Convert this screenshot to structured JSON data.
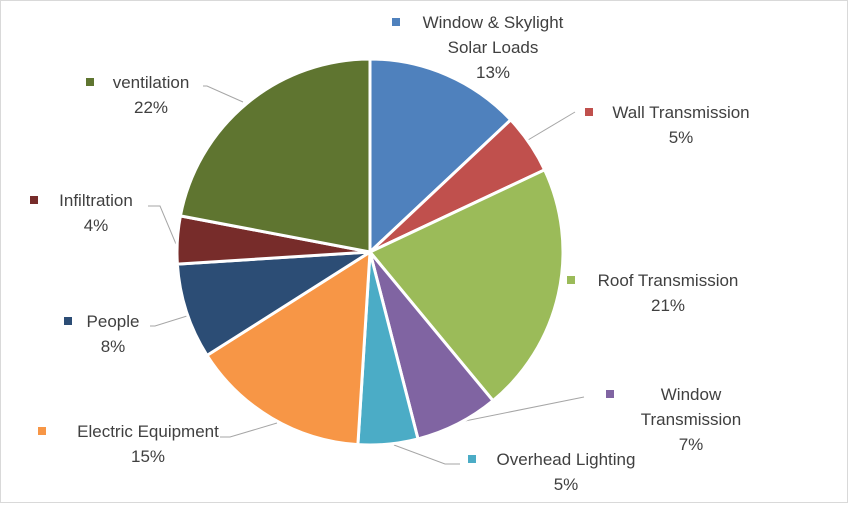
{
  "chart_data": {
    "type": "pie",
    "start_angle_deg": 0,
    "direction": "clockwise",
    "slices": [
      {
        "lines": [
          "Window & Skylight",
          "Solar Loads"
        ],
        "value": 13,
        "value_label": "13%",
        "color": "#4f81bd"
      },
      {
        "lines": [
          "Wall Transmission"
        ],
        "value": 5,
        "value_label": "5%",
        "color": "#c0504d"
      },
      {
        "lines": [
          "Roof Transmission"
        ],
        "value": 21,
        "value_label": "21%",
        "color": "#9bbb59"
      },
      {
        "lines": [
          "Window",
          "Transmission"
        ],
        "value": 7,
        "value_label": "7%",
        "color": "#8064a2"
      },
      {
        "lines": [
          "Overhead Lighting"
        ],
        "value": 5,
        "value_label": "5%",
        "color": "#4bacc6"
      },
      {
        "lines": [
          "Electric Equipment"
        ],
        "value": 15,
        "value_label": "15%",
        "color": "#f79646"
      },
      {
        "lines": [
          "People"
        ],
        "value": 8,
        "value_label": "8%",
        "color": "#2c4d75"
      },
      {
        "lines": [
          "Infiltration"
        ],
        "value": 4,
        "value_label": "4%",
        "color": "#772c2a"
      },
      {
        "lines": [
          "ventilation"
        ],
        "value": 22,
        "value_label": "22%",
        "color": "#5f7530"
      }
    ]
  }
}
